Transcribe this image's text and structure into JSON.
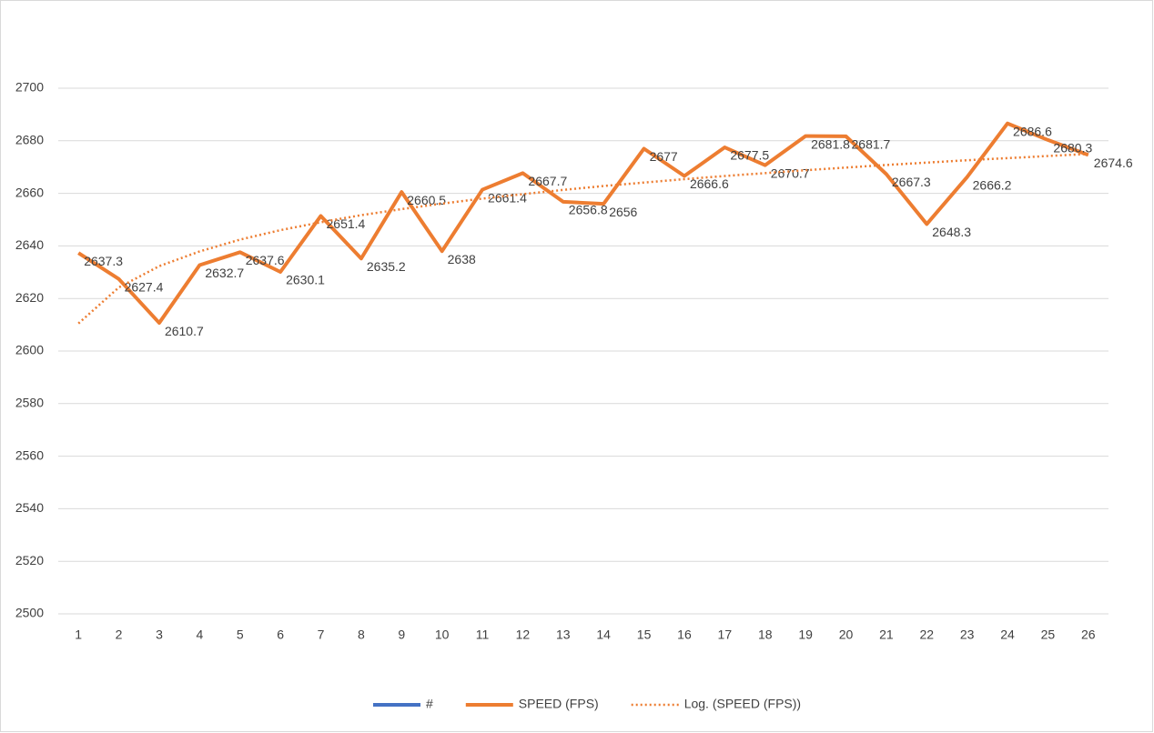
{
  "chart_data": {
    "type": "line",
    "categories": [
      "1",
      "2",
      "3",
      "4",
      "5",
      "6",
      "7",
      "8",
      "9",
      "10",
      "11",
      "12",
      "13",
      "14",
      "15",
      "16",
      "17",
      "18",
      "19",
      "20",
      "21",
      "22",
      "23",
      "24",
      "25",
      "26"
    ],
    "series": [
      {
        "name": "#",
        "color": "#4472c4",
        "values": [
          null,
          null,
          null,
          null,
          null,
          null,
          null,
          null,
          null,
          null,
          null,
          null,
          null,
          null,
          null,
          null,
          null,
          null,
          null,
          null,
          null,
          null,
          null,
          null,
          null,
          null
        ]
      },
      {
        "name": "SPEED (FPS)",
        "color": "#ed7d31",
        "data_labels": true,
        "values": [
          2637.3,
          2627.4,
          2610.7,
          2632.7,
          2637.6,
          2630.1,
          2651.4,
          2635.2,
          2660.5,
          2638,
          2661.4,
          2667.7,
          2656.8,
          2656,
          2677,
          2666.6,
          2677.5,
          2670.7,
          2681.8,
          2681.7,
          2667.3,
          2648.3,
          2666.2,
          2686.6,
          2680.3,
          2674.6
        ]
      },
      {
        "name": "Log. (SPEED (FPS))",
        "color": "#ed7d31",
        "dashed": true,
        "values": [
          2610.5,
          2624.2,
          2632.3,
          2637.9,
          2642.4,
          2646,
          2649,
          2651.7,
          2654,
          2656.1,
          2658,
          2659.7,
          2661.3,
          2662.8,
          2664.1,
          2665.4,
          2666.6,
          2667.7,
          2668.8,
          2669.8,
          2670.8,
          2671.7,
          2672.6,
          2673.4,
          2674.2,
          2675
        ]
      }
    ],
    "ylim": [
      2500,
      2700
    ],
    "yticks": [
      2500,
      2520,
      2540,
      2560,
      2580,
      2600,
      2620,
      2640,
      2660,
      2680,
      2700
    ],
    "grid": true,
    "legend": "bottom"
  }
}
